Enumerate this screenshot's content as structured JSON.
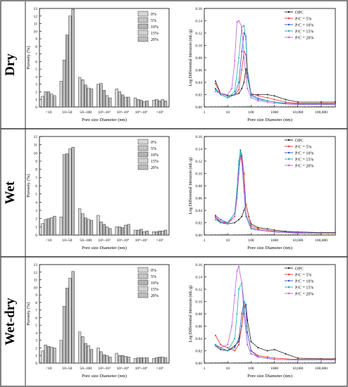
{
  "row_labels": [
    "Dry",
    "Wet",
    "Wet-dry"
  ],
  "bar_xlabel": "Pore size Diameter (nm)",
  "bar_ylabel": "Porosity (%)",
  "bar_categories": [
    "<10",
    "10~50",
    "50~100",
    "10²~10³",
    "10³~10⁴",
    "10⁴~10⁵",
    ">10⁵"
  ],
  "bar_legend": [
    "0%",
    "5%",
    "10%",
    "15%",
    "20%"
  ],
  "line_xlabel": "Pore size Diameter (nm)",
  "line_ylabel": "Log Differential Intrusion (mL/g)",
  "line_xticks": [
    "1",
    "10",
    "100",
    "1000",
    "10,000",
    "100,000"
  ],
  "line_legend": [
    "OPC",
    "P/C = 5%",
    "P/C = 10%",
    "P/C = 15%",
    "P/C = 20%"
  ],
  "colors": {
    "lines": [
      "#222222",
      "#e8342c",
      "#2f4fd8",
      "#1ab0a8",
      "#c25ae0"
    ],
    "bars": [
      "#d6d6d6",
      "#c4c4c4",
      "#b2b2b2",
      "#d0d0d0",
      "#bcbcbc"
    ]
  },
  "chart_data": [
    {
      "type": "bar",
      "panel": "Dry",
      "categories": [
        "<10",
        "10~50",
        "50~100",
        "10²~10³",
        "10³~10⁴",
        "10⁴~10⁵",
        ">10⁵"
      ],
      "ylim": [
        0,
        13
      ],
      "series": [
        {
          "name": "0%",
          "values": [
            1.4,
            3.4,
            3.9,
            3.0,
            2.4,
            1.2,
            0.9
          ]
        },
        {
          "name": "5%",
          "values": [
            2.0,
            6.2,
            3.6,
            3.1,
            2.0,
            1.0,
            1.0
          ]
        },
        {
          "name": "10%",
          "values": [
            2.0,
            9.5,
            2.9,
            2.2,
            1.6,
            0.9,
            0.8
          ]
        },
        {
          "name": "15%",
          "values": [
            1.7,
            12.0,
            2.5,
            1.5,
            1.3,
            0.7,
            1.0
          ]
        },
        {
          "name": "20%",
          "values": [
            1.5,
            12.9,
            2.4,
            1.2,
            1.3,
            0.8,
            0.8
          ]
        }
      ]
    },
    {
      "type": "line",
      "panel": "Dry",
      "xscale": "log",
      "xlim": [
        1,
        400000
      ],
      "ylim": [
        0,
        0.16
      ],
      "series": [
        {
          "name": "OPC",
          "x": [
            3,
            5,
            10,
            20,
            30,
            40,
            50,
            60,
            70,
            100,
            200,
            500,
            1000,
            3000,
            10000,
            100000,
            400000
          ],
          "y": [
            0.042,
            0.022,
            0.018,
            0.02,
            0.022,
            0.03,
            0.04,
            0.062,
            0.048,
            0.02,
            0.02,
            0.02,
            0.018,
            0.012,
            0.008,
            0.008,
            0.008
          ]
        },
        {
          "name": "P/C = 5%",
          "x": [
            3,
            5,
            10,
            20,
            30,
            40,
            50,
            60,
            70,
            100,
            200,
            500,
            1000,
            3000,
            10000,
            100000,
            400000
          ],
          "y": [
            0.038,
            0.02,
            0.015,
            0.02,
            0.028,
            0.06,
            0.09,
            0.085,
            0.05,
            0.022,
            0.018,
            0.015,
            0.012,
            0.008,
            0.006,
            0.006,
            0.006
          ]
        },
        {
          "name": "P/C = 10%",
          "x": [
            3,
            5,
            10,
            20,
            30,
            40,
            50,
            60,
            70,
            100,
            200,
            500,
            1000,
            3000,
            10000,
            100000,
            400000
          ],
          "y": [
            0.03,
            0.02,
            0.015,
            0.02,
            0.04,
            0.09,
            0.12,
            0.115,
            0.06,
            0.02,
            0.014,
            0.01,
            0.008,
            0.006,
            0.005,
            0.005,
            0.005
          ]
        },
        {
          "name": "P/C = 15%",
          "x": [
            3,
            5,
            10,
            20,
            30,
            40,
            50,
            60,
            70,
            100,
            200,
            500,
            1000,
            3000,
            10000,
            100000,
            400000
          ],
          "y": [
            0.028,
            0.02,
            0.015,
            0.025,
            0.08,
            0.13,
            0.132,
            0.11,
            0.05,
            0.018,
            0.012,
            0.01,
            0.008,
            0.005,
            0.004,
            0.004,
            0.004
          ]
        },
        {
          "name": "P/C = 20%",
          "x": [
            3,
            5,
            10,
            15,
            20,
            25,
            30,
            40,
            50,
            70,
            100,
            200,
            500,
            1000,
            10000,
            100000,
            400000
          ],
          "y": [
            0.025,
            0.022,
            0.02,
            0.03,
            0.075,
            0.138,
            0.14,
            0.13,
            0.08,
            0.03,
            0.015,
            0.01,
            0.008,
            0.006,
            0.004,
            0.004,
            0.004
          ]
        }
      ]
    },
    {
      "type": "bar",
      "panel": "Wet",
      "categories": [
        "<10",
        "10~50",
        "50~100",
        "10²~10³",
        "10³~10⁴",
        "10⁴~10⁵",
        ">10⁵"
      ],
      "ylim": [
        0,
        12
      ],
      "series": [
        {
          "name": "0%",
          "values": [
            1.4,
            2.2,
            3.2,
            2.4,
            1.0,
            0.6,
            0.4
          ]
        },
        {
          "name": "5%",
          "values": [
            1.9,
            9.8,
            2.6,
            1.6,
            1.0,
            0.6,
            0.4
          ]
        },
        {
          "name": "10%",
          "values": [
            2.0,
            9.9,
            2.1,
            1.3,
            0.9,
            0.7,
            0.5
          ]
        },
        {
          "name": "15%",
          "values": [
            2.1,
            10.5,
            1.9,
            1.0,
            1.2,
            0.4,
            0.5
          ]
        },
        {
          "name": "20%",
          "values": [
            2.3,
            10.7,
            1.8,
            0.8,
            1.3,
            0.5,
            0.6
          ]
        }
      ]
    },
    {
      "type": "line",
      "panel": "Wet",
      "xscale": "log",
      "xlim": [
        1,
        400000
      ],
      "ylim": [
        0,
        0.16
      ],
      "series": [
        {
          "name": "OPC",
          "x": [
            3,
            5,
            10,
            20,
            30,
            40,
            50,
            60,
            80,
            100,
            200,
            500,
            1000,
            3000,
            10000,
            100000,
            400000
          ],
          "y": [
            0.028,
            0.02,
            0.018,
            0.02,
            0.025,
            0.03,
            0.04,
            0.05,
            0.03,
            0.018,
            0.012,
            0.01,
            0.008,
            0.006,
            0.005,
            0.004,
            0.004
          ]
        },
        {
          "name": "P/C = 5%",
          "x": [
            3,
            5,
            10,
            20,
            25,
            30,
            35,
            40,
            50,
            60,
            100,
            200,
            1000,
            10000,
            100000,
            400000
          ],
          "y": [
            0.03,
            0.022,
            0.02,
            0.03,
            0.06,
            0.1,
            0.128,
            0.13,
            0.1,
            0.05,
            0.015,
            0.01,
            0.006,
            0.004,
            0.003,
            0.003
          ]
        },
        {
          "name": "P/C = 10%",
          "x": [
            3,
            5,
            10,
            20,
            25,
            30,
            35,
            40,
            50,
            60,
            100,
            200,
            1000,
            10000,
            100000,
            400000
          ],
          "y": [
            0.032,
            0.025,
            0.02,
            0.035,
            0.07,
            0.115,
            0.138,
            0.128,
            0.08,
            0.035,
            0.012,
            0.008,
            0.005,
            0.003,
            0.003,
            0.003
          ]
        },
        {
          "name": "P/C = 15%",
          "x": [
            3,
            5,
            10,
            20,
            25,
            30,
            35,
            40,
            50,
            60,
            100,
            200,
            1000,
            10000,
            100000,
            400000
          ],
          "y": [
            0.025,
            0.02,
            0.02,
            0.035,
            0.075,
            0.12,
            0.135,
            0.12,
            0.07,
            0.03,
            0.01,
            0.008,
            0.005,
            0.004,
            0.003,
            0.003
          ]
        },
        {
          "name": "P/C = 20%",
          "x": [
            3,
            5,
            10,
            20,
            25,
            30,
            35,
            40,
            50,
            60,
            100,
            200,
            1000,
            10000,
            100000,
            400000
          ],
          "y": [
            0.028,
            0.022,
            0.018,
            0.03,
            0.06,
            0.1,
            0.125,
            0.12,
            0.075,
            0.035,
            0.012,
            0.008,
            0.005,
            0.004,
            0.003,
            0.003
          ]
        }
      ]
    },
    {
      "type": "bar",
      "panel": "Wet-dry",
      "categories": [
        "<10",
        "10~50",
        "50~100",
        "10²~10³",
        "10³~10⁴",
        "10⁴~10⁵",
        ">10⁵"
      ],
      "ylim": [
        0,
        13
      ],
      "series": [
        {
          "name": "0%",
          "values": [
            1.6,
            3.0,
            4.1,
            2.0,
            1.3,
            0.6,
            0.6
          ]
        },
        {
          "name": "5%",
          "values": [
            2.4,
            7.5,
            3.5,
            1.5,
            1.0,
            0.7,
            0.7
          ]
        },
        {
          "name": "10%",
          "values": [
            2.2,
            9.9,
            2.6,
            1.1,
            1.0,
            0.7,
            0.8
          ]
        },
        {
          "name": "15%",
          "values": [
            2.1,
            11.2,
            2.3,
            1.0,
            0.9,
            0.7,
            0.8
          ]
        },
        {
          "name": "20%",
          "values": [
            2.0,
            12.1,
            1.8,
            0.8,
            0.8,
            0.7,
            0.7
          ]
        }
      ]
    },
    {
      "type": "line",
      "panel": "Wet-dry",
      "xscale": "log",
      "xlim": [
        1,
        400000
      ],
      "ylim": [
        0,
        0.16
      ],
      "series": [
        {
          "name": "OPC",
          "x": [
            3,
            5,
            10,
            20,
            30,
            40,
            50,
            60,
            70,
            100,
            200,
            500,
            1000,
            3000,
            10000,
            100000,
            400000
          ],
          "y": [
            0.028,
            0.022,
            0.02,
            0.028,
            0.035,
            0.06,
            0.09,
            0.095,
            0.07,
            0.035,
            0.025,
            0.02,
            0.022,
            0.015,
            0.008,
            0.007,
            0.007
          ]
        },
        {
          "name": "P/C = 5%",
          "x": [
            3,
            5,
            10,
            20,
            30,
            40,
            50,
            60,
            70,
            100,
            200,
            500,
            1000,
            10000,
            100000,
            400000
          ],
          "y": [
            0.045,
            0.03,
            0.025,
            0.02,
            0.03,
            0.06,
            0.095,
            0.09,
            0.05,
            0.02,
            0.012,
            0.01,
            0.008,
            0.006,
            0.006,
            0.006
          ]
        },
        {
          "name": "P/C = 10%",
          "x": [
            3,
            5,
            10,
            20,
            30,
            40,
            50,
            60,
            70,
            100,
            200,
            500,
            1000,
            10000,
            100000,
            400000
          ],
          "y": [
            0.03,
            0.025,
            0.02,
            0.025,
            0.04,
            0.08,
            0.1,
            0.095,
            0.05,
            0.02,
            0.01,
            0.008,
            0.006,
            0.005,
            0.005,
            0.005
          ]
        },
        {
          "name": "P/C = 15%",
          "x": [
            3,
            5,
            10,
            20,
            25,
            30,
            40,
            50,
            60,
            70,
            100,
            200,
            1000,
            10000,
            100000,
            400000
          ],
          "y": [
            0.03,
            0.025,
            0.02,
            0.04,
            0.08,
            0.12,
            0.13,
            0.1,
            0.06,
            0.03,
            0.015,
            0.01,
            0.006,
            0.005,
            0.005,
            0.005
          ]
        },
        {
          "name": "P/C = 20%",
          "x": [
            3,
            5,
            10,
            15,
            20,
            25,
            30,
            40,
            50,
            70,
            100,
            200,
            1000,
            10000,
            100000,
            400000
          ],
          "y": [
            0.028,
            0.025,
            0.03,
            0.06,
            0.11,
            0.15,
            0.157,
            0.13,
            0.08,
            0.03,
            0.015,
            0.01,
            0.006,
            0.005,
            0.005,
            0.005
          ]
        }
      ]
    }
  ]
}
